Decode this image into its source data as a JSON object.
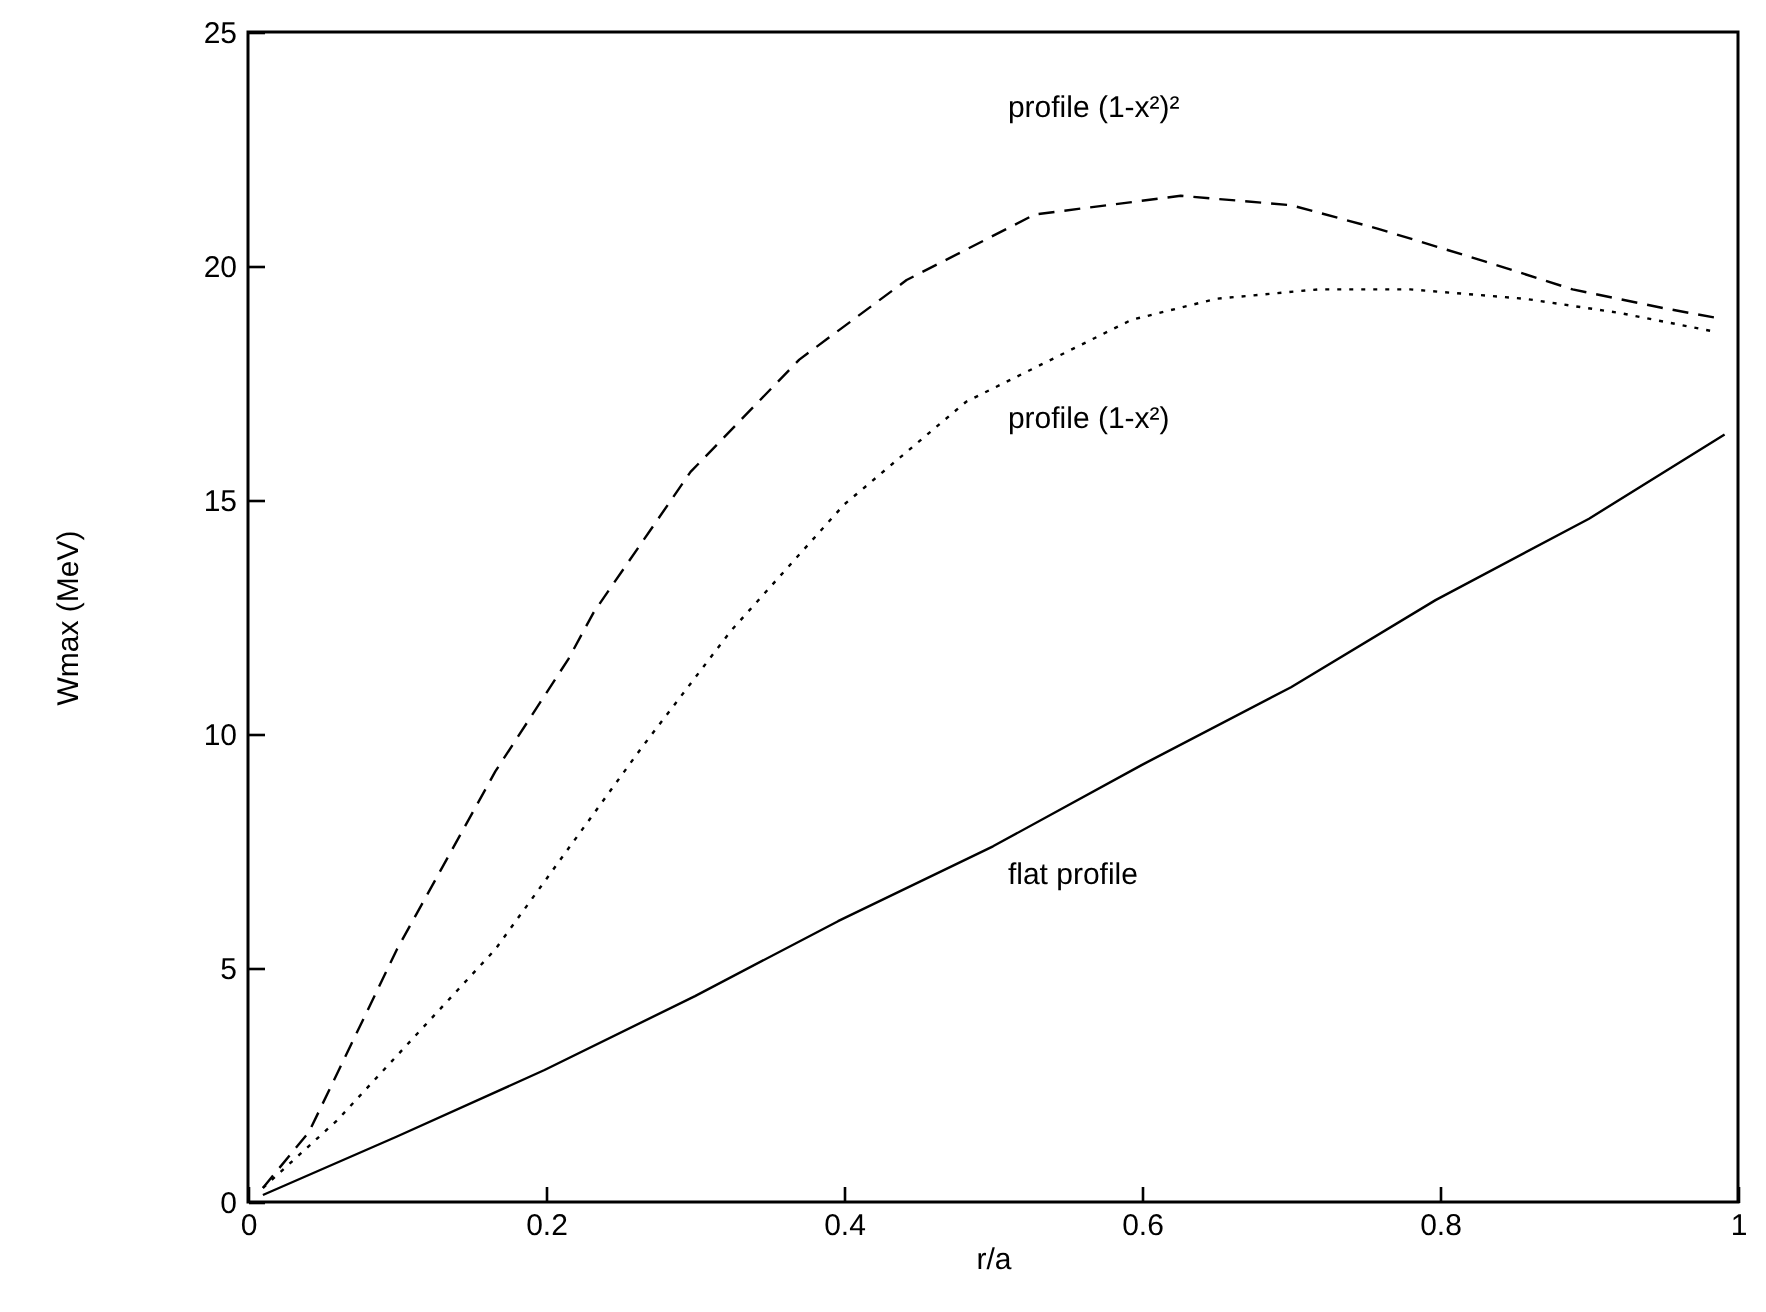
{
  "chart_data": {
    "type": "line",
    "xlabel": "r/a",
    "ylabel": "Wmax (MeV)",
    "xlim": [
      0,
      1
    ],
    "ylim": [
      0,
      25
    ],
    "xticks": [
      0,
      0.2,
      0.4,
      0.6,
      0.8,
      1
    ],
    "yticks": [
      0,
      5,
      10,
      15,
      20,
      25
    ],
    "grid": false,
    "series": [
      {
        "color": "#000000",
        "line_style": "dashed",
        "x": [
          0.01,
          0.041,
          0.1,
          0.166,
          0.215,
          0.232,
          0.297,
          0.37,
          0.442,
          0.528,
          0.626,
          0.7,
          0.758,
          0.83,
          0.889,
          0.95,
          0.984
        ],
        "values": [
          0.3,
          1.5,
          5.4,
          9.2,
          11.6,
          12.6,
          15.6,
          18.0,
          19.7,
          21.1,
          21.5,
          21.3,
          20.8,
          20.1,
          19.5,
          19.1,
          18.9
        ]
      },
      {
        "color": "#000000",
        "line_style": "dotted",
        "x": [
          0.01,
          0.06,
          0.166,
          0.264,
          0.324,
          0.4,
          0.482,
          0.593,
          0.65,
          0.718,
          0.78,
          0.857,
          0.92,
          0.984
        ],
        "values": [
          0.3,
          1.75,
          5.4,
          9.7,
          12.2,
          14.9,
          17.1,
          18.85,
          19.3,
          19.5,
          19.5,
          19.3,
          19.0,
          18.6
        ]
      },
      {
        "color": "#000000",
        "line_style": "solid",
        "x": [
          0.01,
          0.1,
          0.199,
          0.3,
          0.396,
          0.5,
          0.6,
          0.7,
          0.797,
          0.9,
          0.991
        ],
        "values": [
          0.15,
          1.4,
          2.82,
          4.4,
          6.0,
          7.6,
          9.34,
          11.0,
          12.86,
          14.6,
          16.4
        ]
      }
    ],
    "annotations": [
      "profile (1-x²)²",
      "profile (1-x²)",
      "flat profile"
    ]
  }
}
